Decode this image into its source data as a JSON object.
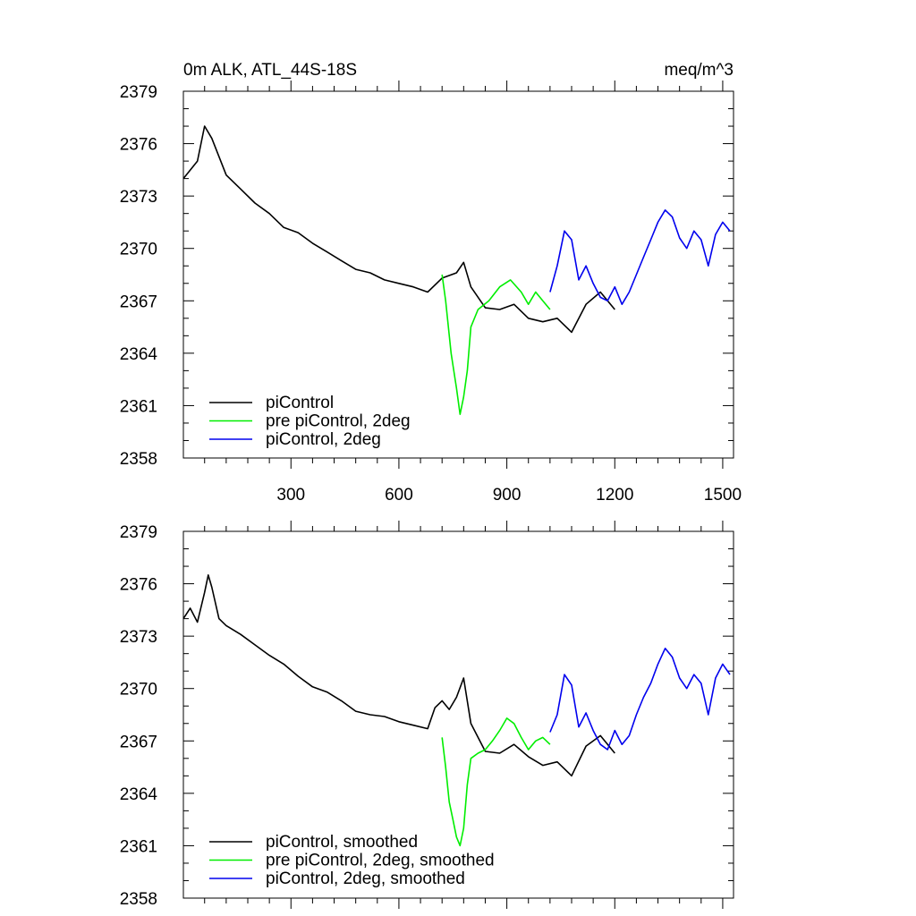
{
  "chart_data": [
    {
      "type": "line",
      "title_left": "0m ALK, ATL_44S-18S",
      "title_right": "meq/m^3",
      "xlim": [
        1,
        1530
      ],
      "ylim": [
        2358,
        2379
      ],
      "xticks": [
        300,
        600,
        900,
        1200,
        1500
      ],
      "xtick_labels": [
        "300",
        "600",
        "900",
        "1200",
        "1500"
      ],
      "yticks": [
        2358,
        2361,
        2364,
        2367,
        2370,
        2373,
        2376,
        2379
      ],
      "ytick_labels": [
        "2358",
        "2361",
        "2364",
        "2367",
        "2370",
        "2373",
        "2376",
        "2379"
      ],
      "legend_position": "bottom-left",
      "series": [
        {
          "name": "piControl",
          "color": "#000000",
          "x": [
            1,
            40,
            60,
            80,
            120,
            160,
            200,
            240,
            280,
            320,
            360,
            400,
            440,
            480,
            520,
            560,
            600,
            640,
            680,
            720,
            760,
            780,
            800,
            840,
            880,
            920,
            960,
            1000,
            1040,
            1080,
            1120,
            1160,
            1200
          ],
          "y": [
            2374.0,
            2375.0,
            2377.0,
            2376.3,
            2374.2,
            2373.4,
            2372.6,
            2372.0,
            2371.2,
            2370.9,
            2370.3,
            2369.8,
            2369.3,
            2368.8,
            2368.6,
            2368.2,
            2368.0,
            2367.8,
            2367.5,
            2368.3,
            2368.6,
            2369.2,
            2367.8,
            2366.6,
            2366.5,
            2366.8,
            2366.0,
            2365.8,
            2366.0,
            2365.2,
            2366.8,
            2367.5,
            2366.5
          ]
        },
        {
          "name": "pre piControl, 2deg",
          "color": "#00ee00",
          "x": [
            720,
            730,
            745,
            760,
            770,
            780,
            790,
            800,
            820,
            850,
            880,
            910,
            940,
            960,
            980,
            1000,
            1020
          ],
          "y": [
            2368.5,
            2367.0,
            2364.0,
            2362.0,
            2360.5,
            2361.5,
            2363.0,
            2365.5,
            2366.5,
            2367.0,
            2367.8,
            2368.2,
            2367.5,
            2366.8,
            2367.5,
            2367.0,
            2366.5
          ]
        },
        {
          "name": "piControl, 2deg",
          "color": "#0000ee",
          "x": [
            1020,
            1040,
            1060,
            1080,
            1100,
            1120,
            1140,
            1160,
            1180,
            1200,
            1220,
            1240,
            1260,
            1280,
            1300,
            1320,
            1340,
            1360,
            1380,
            1400,
            1420,
            1440,
            1460,
            1480,
            1500,
            1520
          ],
          "y": [
            2367.5,
            2369.0,
            2371.0,
            2370.5,
            2368.2,
            2369.0,
            2368.0,
            2367.2,
            2367.0,
            2367.8,
            2366.8,
            2367.5,
            2368.5,
            2369.5,
            2370.5,
            2371.5,
            2372.2,
            2371.8,
            2370.6,
            2370.0,
            2371.0,
            2370.5,
            2369.0,
            2370.8,
            2371.5,
            2371.0
          ]
        }
      ]
    },
    {
      "type": "line",
      "xlim": [
        1,
        1530
      ],
      "ylim": [
        2358,
        2379
      ],
      "xticks": [
        300,
        600,
        900,
        1200,
        1500
      ],
      "yticks": [
        2358,
        2361,
        2364,
        2367,
        2370,
        2373,
        2376,
        2379
      ],
      "ytick_labels": [
        "2358",
        "2361",
        "2364",
        "2367",
        "2370",
        "2373",
        "2376",
        "2379"
      ],
      "legend_position": "bottom-left",
      "series": [
        {
          "name": "piControl, smoothed",
          "color": "#000000",
          "x": [
            1,
            20,
            40,
            60,
            70,
            80,
            100,
            120,
            160,
            200,
            240,
            280,
            320,
            360,
            400,
            440,
            480,
            520,
            560,
            600,
            640,
            680,
            700,
            720,
            740,
            760,
            780,
            800,
            840,
            880,
            920,
            960,
            1000,
            1040,
            1080,
            1120,
            1160,
            1200
          ],
          "y": [
            2374.0,
            2374.6,
            2373.8,
            2375.5,
            2376.5,
            2375.8,
            2374.0,
            2373.6,
            2373.1,
            2372.5,
            2371.9,
            2371.4,
            2370.7,
            2370.1,
            2369.8,
            2369.3,
            2368.7,
            2368.5,
            2368.4,
            2368.1,
            2367.9,
            2367.7,
            2368.9,
            2369.3,
            2368.8,
            2369.5,
            2370.6,
            2368.0,
            2366.4,
            2366.3,
            2366.8,
            2366.1,
            2365.6,
            2365.8,
            2365.0,
            2366.7,
            2367.3,
            2366.3
          ]
        },
        {
          "name": "pre piControl, 2deg, smoothed",
          "color": "#00ee00",
          "x": [
            720,
            730,
            740,
            750,
            760,
            770,
            780,
            790,
            800,
            820,
            840,
            860,
            880,
            900,
            920,
            940,
            960,
            980,
            1000,
            1020
          ],
          "y": [
            2367.2,
            2365.5,
            2363.5,
            2362.5,
            2361.5,
            2361.0,
            2362.0,
            2364.5,
            2366.0,
            2366.3,
            2366.5,
            2367.0,
            2367.6,
            2368.3,
            2368.0,
            2367.2,
            2366.5,
            2367.0,
            2367.2,
            2366.8
          ]
        },
        {
          "name": "piControl, 2deg, smoothed",
          "color": "#0000ee",
          "x": [
            1020,
            1040,
            1060,
            1080,
            1100,
            1120,
            1140,
            1160,
            1180,
            1200,
            1220,
            1240,
            1260,
            1280,
            1300,
            1320,
            1340,
            1360,
            1380,
            1400,
            1420,
            1440,
            1460,
            1480,
            1500,
            1520
          ],
          "y": [
            2367.5,
            2368.5,
            2370.8,
            2370.2,
            2367.8,
            2368.6,
            2367.6,
            2366.8,
            2366.5,
            2367.6,
            2366.8,
            2367.3,
            2368.5,
            2369.5,
            2370.3,
            2371.4,
            2372.3,
            2371.8,
            2370.6,
            2370.0,
            2370.8,
            2370.3,
            2368.5,
            2370.6,
            2371.4,
            2370.8
          ]
        }
      ]
    }
  ]
}
